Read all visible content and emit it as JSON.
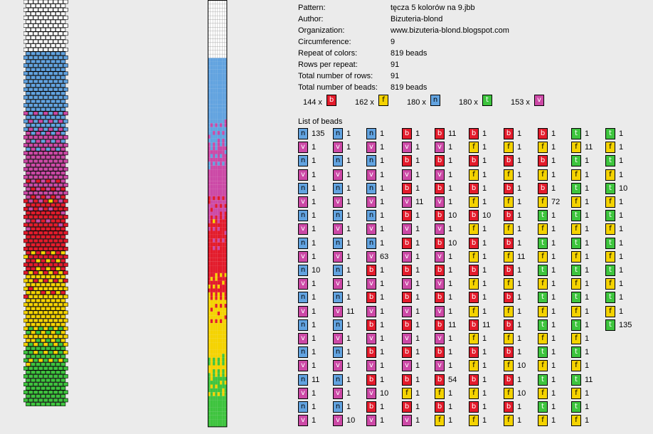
{
  "info": [
    {
      "label": "Pattern:",
      "value": "tęcza 5 kolorów na 9.jbb"
    },
    {
      "label": "Author:",
      "value": "Bizuteria-blond"
    },
    {
      "label": "Organization:",
      "value": "www.bizuteria-blond.blogspot.com"
    },
    {
      "label": "Circumference:",
      "value": "9"
    },
    {
      "label": "Repeat of colors:",
      "value": "819 beads"
    },
    {
      "label": "Rows per repeat:",
      "value": "91"
    },
    {
      "label": "Total number of rows:",
      "value": "91"
    },
    {
      "label": "Total number of beads:",
      "value": "819 beads"
    }
  ],
  "colors": {
    "b": "#e31b2b",
    "f": "#f5d300",
    "n": "#62a3e0",
    "t": "#3ec43e",
    "v": "#cc49a6",
    "w": "#ffffff"
  },
  "totals": [
    {
      "count": "144 x",
      "code": "b"
    },
    {
      "count": "162 x",
      "code": "f"
    },
    {
      "count": "180 x",
      "code": "n"
    },
    {
      "count": "180 x",
      "code": "t"
    },
    {
      "count": "153 x",
      "code": "v"
    }
  ],
  "list_title": "List of beads",
  "bead_list": [
    [
      [
        "n",
        "135"
      ],
      [
        "v",
        "1"
      ],
      [
        "n",
        "1"
      ],
      [
        "v",
        "1"
      ],
      [
        "n",
        "1"
      ],
      [
        "v",
        "1"
      ],
      [
        "n",
        "1"
      ],
      [
        "v",
        "1"
      ],
      [
        "n",
        "1"
      ],
      [
        "v",
        "1"
      ],
      [
        "n",
        "10"
      ],
      [
        "v",
        "1"
      ],
      [
        "n",
        "1"
      ],
      [
        "v",
        "1"
      ],
      [
        "n",
        "1"
      ],
      [
        "v",
        "1"
      ],
      [
        "n",
        "1"
      ],
      [
        "v",
        "1"
      ],
      [
        "n",
        "11"
      ],
      [
        "v",
        "1"
      ],
      [
        "n",
        "1"
      ],
      [
        "v",
        "1"
      ]
    ],
    [
      [
        "n",
        "1"
      ],
      [
        "v",
        "1"
      ],
      [
        "n",
        "1"
      ],
      [
        "v",
        "1"
      ],
      [
        "n",
        "1"
      ],
      [
        "v",
        "1"
      ],
      [
        "n",
        "1"
      ],
      [
        "v",
        "1"
      ],
      [
        "n",
        "1"
      ],
      [
        "v",
        "1"
      ],
      [
        "n",
        "1"
      ],
      [
        "v",
        "1"
      ],
      [
        "n",
        "1"
      ],
      [
        "v",
        "11"
      ],
      [
        "n",
        "1"
      ],
      [
        "v",
        "1"
      ],
      [
        "n",
        "1"
      ],
      [
        "v",
        "1"
      ],
      [
        "n",
        "1"
      ],
      [
        "v",
        "1"
      ],
      [
        "n",
        "1"
      ],
      [
        "v",
        "10"
      ]
    ],
    [
      [
        "n",
        "1"
      ],
      [
        "v",
        "1"
      ],
      [
        "n",
        "1"
      ],
      [
        "v",
        "1"
      ],
      [
        "n",
        "1"
      ],
      [
        "v",
        "1"
      ],
      [
        "n",
        "1"
      ],
      [
        "v",
        "1"
      ],
      [
        "n",
        "1"
      ],
      [
        "v",
        "63"
      ],
      [
        "b",
        "1"
      ],
      [
        "v",
        "1"
      ],
      [
        "b",
        "1"
      ],
      [
        "v",
        "1"
      ],
      [
        "b",
        "1"
      ],
      [
        "v",
        "1"
      ],
      [
        "b",
        "1"
      ],
      [
        "v",
        "1"
      ],
      [
        "b",
        "1"
      ],
      [
        "v",
        "10"
      ],
      [
        "b",
        "1"
      ],
      [
        "v",
        "1"
      ]
    ],
    [
      [
        "b",
        "1"
      ],
      [
        "v",
        "1"
      ],
      [
        "b",
        "1"
      ],
      [
        "v",
        "1"
      ],
      [
        "b",
        "1"
      ],
      [
        "v",
        "11"
      ],
      [
        "b",
        "1"
      ],
      [
        "v",
        "1"
      ],
      [
        "b",
        "1"
      ],
      [
        "v",
        "1"
      ],
      [
        "b",
        "1"
      ],
      [
        "v",
        "1"
      ],
      [
        "b",
        "1"
      ],
      [
        "v",
        "1"
      ],
      [
        "b",
        "1"
      ],
      [
        "v",
        "1"
      ],
      [
        "b",
        "1"
      ],
      [
        "v",
        "1"
      ],
      [
        "b",
        "1"
      ],
      [
        "f",
        "1"
      ],
      [
        "b",
        "1"
      ],
      [
        "v",
        "1"
      ]
    ],
    [
      [
        "b",
        "11"
      ],
      [
        "v",
        "1"
      ],
      [
        "b",
        "1"
      ],
      [
        "v",
        "1"
      ],
      [
        "b",
        "1"
      ],
      [
        "v",
        "1"
      ],
      [
        "b",
        "10"
      ],
      [
        "v",
        "1"
      ],
      [
        "b",
        "10"
      ],
      [
        "v",
        "1"
      ],
      [
        "b",
        "1"
      ],
      [
        "v",
        "1"
      ],
      [
        "b",
        "1"
      ],
      [
        "v",
        "1"
      ],
      [
        "b",
        "11"
      ],
      [
        "v",
        "1"
      ],
      [
        "b",
        "1"
      ],
      [
        "v",
        "1"
      ],
      [
        "b",
        "54"
      ],
      [
        "f",
        "1"
      ],
      [
        "b",
        "1"
      ],
      [
        "f",
        "1"
      ]
    ],
    [
      [
        "b",
        "1"
      ],
      [
        "f",
        "1"
      ],
      [
        "b",
        "1"
      ],
      [
        "f",
        "1"
      ],
      [
        "b",
        "1"
      ],
      [
        "f",
        "1"
      ],
      [
        "b",
        "10"
      ],
      [
        "f",
        "1"
      ],
      [
        "b",
        "1"
      ],
      [
        "f",
        "1"
      ],
      [
        "b",
        "1"
      ],
      [
        "f",
        "1"
      ],
      [
        "b",
        "1"
      ],
      [
        "f",
        "1"
      ],
      [
        "b",
        "11"
      ],
      [
        "f",
        "1"
      ],
      [
        "b",
        "1"
      ],
      [
        "f",
        "1"
      ],
      [
        "b",
        "1"
      ],
      [
        "f",
        "1"
      ],
      [
        "b",
        "1"
      ],
      [
        "f",
        "1"
      ]
    ],
    [
      [
        "b",
        "1"
      ],
      [
        "f",
        "1"
      ],
      [
        "b",
        "1"
      ],
      [
        "f",
        "1"
      ],
      [
        "b",
        "1"
      ],
      [
        "f",
        "1"
      ],
      [
        "b",
        "1"
      ],
      [
        "f",
        "1"
      ],
      [
        "b",
        "1"
      ],
      [
        "f",
        "11"
      ],
      [
        "b",
        "1"
      ],
      [
        "f",
        "1"
      ],
      [
        "b",
        "1"
      ],
      [
        "f",
        "1"
      ],
      [
        "b",
        "1"
      ],
      [
        "f",
        "1"
      ],
      [
        "b",
        "1"
      ],
      [
        "f",
        "10"
      ],
      [
        "b",
        "1"
      ],
      [
        "f",
        "10"
      ],
      [
        "b",
        "1"
      ],
      [
        "f",
        "1"
      ]
    ],
    [
      [
        "b",
        "1"
      ],
      [
        "f",
        "1"
      ],
      [
        "b",
        "1"
      ],
      [
        "f",
        "1"
      ],
      [
        "b",
        "1"
      ],
      [
        "f",
        "72"
      ],
      [
        "t",
        "1"
      ],
      [
        "f",
        "1"
      ],
      [
        "t",
        "1"
      ],
      [
        "f",
        "1"
      ],
      [
        "t",
        "1"
      ],
      [
        "f",
        "1"
      ],
      [
        "t",
        "1"
      ],
      [
        "f",
        "1"
      ],
      [
        "t",
        "1"
      ],
      [
        "f",
        "1"
      ],
      [
        "t",
        "1"
      ],
      [
        "f",
        "1"
      ],
      [
        "t",
        "1"
      ],
      [
        "f",
        "1"
      ],
      [
        "t",
        "1"
      ],
      [
        "f",
        "1"
      ]
    ],
    [
      [
        "t",
        "1"
      ],
      [
        "f",
        "11"
      ],
      [
        "t",
        "1"
      ],
      [
        "f",
        "1"
      ],
      [
        "t",
        "1"
      ],
      [
        "f",
        "1"
      ],
      [
        "t",
        "1"
      ],
      [
        "f",
        "1"
      ],
      [
        "t",
        "1"
      ],
      [
        "f",
        "1"
      ],
      [
        "t",
        "1"
      ],
      [
        "f",
        "1"
      ],
      [
        "t",
        "1"
      ],
      [
        "f",
        "1"
      ],
      [
        "t",
        "1"
      ],
      [
        "f",
        "1"
      ],
      [
        "t",
        "1"
      ],
      [
        "f",
        "1"
      ],
      [
        "t",
        "11"
      ],
      [
        "f",
        "1"
      ],
      [
        "t",
        "1"
      ],
      [
        "f",
        "1"
      ]
    ],
    [
      [
        "t",
        "1"
      ],
      [
        "f",
        "1"
      ],
      [
        "t",
        "1"
      ],
      [
        "f",
        "1"
      ],
      [
        "t",
        "10"
      ],
      [
        "f",
        "1"
      ],
      [
        "t",
        "1"
      ],
      [
        "f",
        "1"
      ],
      [
        "t",
        "1"
      ],
      [
        "f",
        "1"
      ],
      [
        "t",
        "1"
      ],
      [
        "f",
        "1"
      ],
      [
        "t",
        "1"
      ],
      [
        "f",
        "1"
      ],
      [
        "t",
        "135"
      ]
    ]
  ]
}
